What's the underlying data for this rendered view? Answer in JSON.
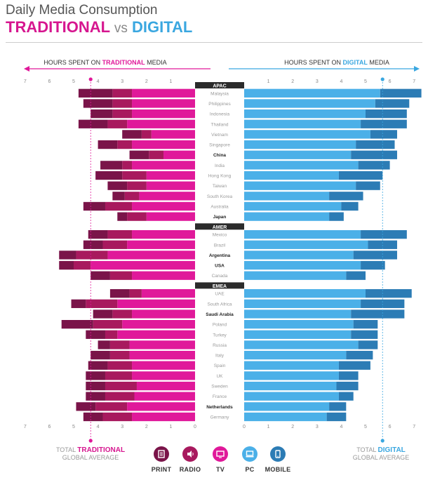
{
  "header": {
    "title": "Daily Media Consumption",
    "subtitle_traditional": "TRADITIONAL",
    "subtitle_vs": "vs",
    "subtitle_digital": "DIGITAL"
  },
  "axis": {
    "left_label_pre": "HOURS SPENT ON ",
    "left_label_highlight": "TRADITIONAL",
    "left_label_post": " MEDIA",
    "right_label_pre": "HOURS SPENT ON ",
    "right_label_highlight": "DIGITAL",
    "right_label_post": " MEDIA"
  },
  "averages": {
    "traditional_pre": "TOTAL ",
    "traditional_highlight": "TRADITIONAL",
    "traditional_post": "GLOBAL AVERAGE",
    "digital_pre": "TOTAL ",
    "digital_highlight": "DIGITAL",
    "digital_post": "GLOBAL AVERAGE"
  },
  "legend": [
    {
      "label": "PRINT",
      "icon": "print-icon",
      "color": "#7a1449"
    },
    {
      "label": "RADIO",
      "icon": "radio-icon",
      "color": "#a8195e"
    },
    {
      "label": "TV",
      "icon": "tv-icon",
      "color": "#e0199a"
    },
    {
      "label": "PC",
      "icon": "pc-icon",
      "color": "#4bb0e8"
    },
    {
      "label": "MOBILE",
      "icon": "mobile-icon",
      "color": "#2c7cb5"
    }
  ],
  "chart_data": {
    "type": "bar",
    "orientation": "horizontal-diverging",
    "left_ticks": [
      "7",
      "6",
      "5",
      "4",
      "3",
      "2",
      "1"
    ],
    "right_ticks": [
      "1",
      "2",
      "3",
      "4",
      "5",
      "6",
      "7"
    ],
    "bottom_left_ticks": [
      "7",
      "6",
      "5",
      "4",
      "3",
      "2",
      "1",
      "0"
    ],
    "bottom_right_ticks": [
      "0",
      "1",
      "2",
      "3",
      "4",
      "5",
      "6",
      "7"
    ],
    "xlim": [
      0,
      7
    ],
    "traditional_global_average": 4.3,
    "digital_global_average": 5.7,
    "colors": {
      "print": "#7a1449",
      "radio": "#a8195e",
      "tv": "#e0199a",
      "pc": "#4bb0e8",
      "mobile": "#2c7cb5"
    },
    "regions": [
      {
        "name": "APAC",
        "countries": [
          {
            "name": "Malaysia",
            "bold": false,
            "tv": 2.6,
            "radio": 0.8,
            "print": 1.4,
            "pc": 5.6,
            "mobile": 1.7
          },
          {
            "name": "Philippines",
            "bold": false,
            "tv": 2.6,
            "radio": 0.8,
            "print": 1.2,
            "pc": 5.4,
            "mobile": 1.4
          },
          {
            "name": "Indonesia",
            "bold": false,
            "tv": 2.6,
            "radio": 0.8,
            "print": 0.9,
            "pc": 5.0,
            "mobile": 1.7
          },
          {
            "name": "Thailand",
            "bold": false,
            "tv": 2.8,
            "radio": 0.8,
            "print": 1.2,
            "pc": 4.8,
            "mobile": 1.9
          },
          {
            "name": "Vietnam",
            "bold": false,
            "tv": 1.8,
            "radio": 0.4,
            "print": 0.8,
            "pc": 5.2,
            "mobile": 1.1
          },
          {
            "name": "Singapore",
            "bold": false,
            "tv": 2.6,
            "radio": 0.6,
            "print": 0.8,
            "pc": 4.6,
            "mobile": 1.6
          },
          {
            "name": "China",
            "bold": true,
            "tv": 1.3,
            "radio": 0.6,
            "print": 0.8,
            "pc": 4.4,
            "mobile": 1.9
          },
          {
            "name": "India",
            "bold": false,
            "tv": 2.6,
            "radio": 0.4,
            "print": 0.9,
            "pc": 4.7,
            "mobile": 1.3
          },
          {
            "name": "Hong Kong",
            "bold": false,
            "tv": 2.0,
            "radio": 1.0,
            "print": 1.1,
            "pc": 3.9,
            "mobile": 1.8
          },
          {
            "name": "Taiwan",
            "bold": false,
            "tv": 2.0,
            "radio": 0.8,
            "print": 0.8,
            "pc": 4.6,
            "mobile": 1.0
          },
          {
            "name": "South Korea",
            "bold": false,
            "tv": 2.3,
            "radio": 0.6,
            "print": 0.5,
            "pc": 3.5,
            "mobile": 1.4
          },
          {
            "name": "Australia",
            "bold": false,
            "tv": 2.6,
            "radio": 1.1,
            "print": 0.9,
            "pc": 4.0,
            "mobile": 0.7
          },
          {
            "name": "Japan",
            "bold": true,
            "tv": 2.0,
            "radio": 0.8,
            "print": 0.4,
            "pc": 3.5,
            "mobile": 0.6
          }
        ]
      },
      {
        "name": "AMER",
        "countries": [
          {
            "name": "Mexico",
            "bold": false,
            "tv": 2.6,
            "radio": 1.0,
            "print": 0.8,
            "pc": 4.8,
            "mobile": 1.9
          },
          {
            "name": "Brazil",
            "bold": false,
            "tv": 2.8,
            "radio": 1.0,
            "print": 0.8,
            "pc": 5.1,
            "mobile": 1.2
          },
          {
            "name": "Argentina",
            "bold": true,
            "tv": 3.6,
            "radio": 1.3,
            "print": 0.7,
            "pc": 4.5,
            "mobile": 1.8
          },
          {
            "name": "USA",
            "bold": true,
            "tv": 4.3,
            "radio": 0.7,
            "print": 0.6,
            "pc": 4.8,
            "mobile": 1.0
          },
          {
            "name": "Canada",
            "bold": false,
            "tv": 2.6,
            "radio": 0.9,
            "print": 0.8,
            "pc": 4.2,
            "mobile": 0.8
          }
        ]
      },
      {
        "name": "EMEA",
        "countries": [
          {
            "name": "UAE",
            "bold": false,
            "tv": 2.2,
            "radio": 0.5,
            "print": 0.8,
            "pc": 5.0,
            "mobile": 1.9
          },
          {
            "name": "South Africa",
            "bold": false,
            "tv": 3.2,
            "radio": 1.3,
            "print": 0.6,
            "pc": 4.8,
            "mobile": 1.8
          },
          {
            "name": "Saudi Arabia",
            "bold": true,
            "tv": 2.6,
            "radio": 0.8,
            "print": 0.8,
            "pc": 4.4,
            "mobile": 2.2
          },
          {
            "name": "Poland",
            "bold": false,
            "tv": 3.0,
            "radio": 1.2,
            "print": 1.3,
            "pc": 4.5,
            "mobile": 1.0
          },
          {
            "name": "Turkey",
            "bold": false,
            "tv": 3.2,
            "radio": 0.5,
            "print": 0.8,
            "pc": 4.4,
            "mobile": 1.1
          },
          {
            "name": "Russia",
            "bold": false,
            "tv": 2.7,
            "radio": 0.8,
            "print": 0.5,
            "pc": 4.7,
            "mobile": 0.8
          },
          {
            "name": "Italy",
            "bold": false,
            "tv": 2.7,
            "radio": 0.8,
            "print": 0.8,
            "pc": 4.2,
            "mobile": 1.1
          },
          {
            "name": "Spain",
            "bold": false,
            "tv": 2.6,
            "radio": 1.0,
            "print": 0.8,
            "pc": 3.9,
            "mobile": 1.3
          },
          {
            "name": "UK",
            "bold": false,
            "tv": 2.6,
            "radio": 1.1,
            "print": 0.8,
            "pc": 3.9,
            "mobile": 0.8
          },
          {
            "name": "Sweden",
            "bold": false,
            "tv": 2.4,
            "radio": 1.3,
            "print": 0.8,
            "pc": 3.8,
            "mobile": 0.9
          },
          {
            "name": "France",
            "bold": false,
            "tv": 2.5,
            "radio": 1.2,
            "print": 0.8,
            "pc": 3.9,
            "mobile": 0.6
          },
          {
            "name": "Netherlands",
            "bold": true,
            "tv": 2.8,
            "radio": 1.3,
            "print": 0.8,
            "pc": 3.5,
            "mobile": 0.7
          },
          {
            "name": "Germany",
            "bold": false,
            "tv": 2.6,
            "radio": 1.2,
            "print": 0.8,
            "pc": 3.4,
            "mobile": 0.8
          }
        ]
      }
    ]
  }
}
